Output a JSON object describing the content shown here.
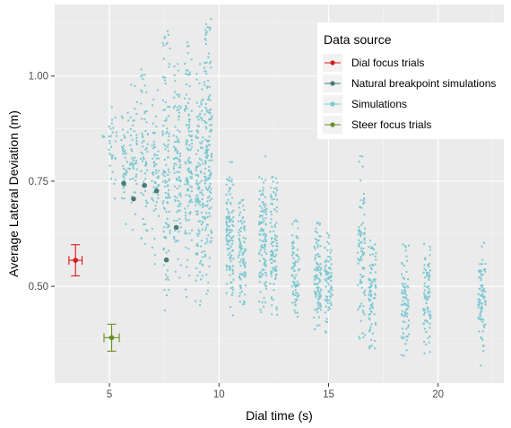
{
  "chart_data": {
    "type": "scatter",
    "title": "",
    "xlabel": "Dial time (s)",
    "ylabel": "Average Lateral Deviation (m)",
    "xlim": [
      2.5,
      23
    ],
    "ylim": [
      0.27,
      1.17
    ],
    "x_ticks": [
      5,
      10,
      15,
      20
    ],
    "x_tick_labels": [
      "5",
      "10",
      "15",
      "20"
    ],
    "y_ticks": [
      0.5,
      0.75,
      1.0
    ],
    "y_tick_labels": [
      "0.50",
      "0.75",
      "1.00"
    ],
    "grid": true,
    "legend": {
      "title": "Data source",
      "placement": "top-right",
      "entries": [
        {
          "label": "Dial focus trials",
          "color": "#d7191c"
        },
        {
          "label": "Natural breakpoint simulations",
          "color": "#4a7a7a"
        },
        {
          "label": "Simulations",
          "color": "#7ac8d0"
        },
        {
          "label": "Steer focus trials",
          "color": "#6b8e23"
        }
      ]
    },
    "series": [
      {
        "name": "Dial focus trials",
        "color": "#d7191c",
        "points": [
          {
            "x": 3.45,
            "y": 0.562,
            "xerr": 0.3,
            "yerr": 0.037
          }
        ]
      },
      {
        "name": "Steer focus trials",
        "color": "#6b8e23",
        "points": [
          {
            "x": 5.1,
            "y": 0.378,
            "xerr": 0.35,
            "yerr": 0.032
          }
        ]
      },
      {
        "name": "Natural breakpoint simulations",
        "color": "#4a7a7a",
        "points": [
          {
            "x": 5.65,
            "y": 0.745
          },
          {
            "x": 6.1,
            "y": 0.708
          },
          {
            "x": 6.6,
            "y": 0.74
          },
          {
            "x": 7.15,
            "y": 0.727
          },
          {
            "x": 7.6,
            "y": 0.563
          },
          {
            "x": 8.05,
            "y": 0.64
          }
        ]
      },
      {
        "name": "Simulations",
        "color": "#7ac8d0",
        "clusters": [
          {
            "x": 4.65,
            "y_min": 0.85,
            "y_max": 0.86,
            "n": 3
          },
          {
            "x": 5.15,
            "y_min": 0.68,
            "y_max": 0.98,
            "n": 30
          },
          {
            "x": 5.7,
            "y_min": 0.62,
            "y_max": 0.95,
            "n": 40
          },
          {
            "x": 6.1,
            "y_min": 0.62,
            "y_max": 0.98,
            "n": 50
          },
          {
            "x": 6.6,
            "y_min": 0.6,
            "y_max": 1.03,
            "n": 60
          },
          {
            "x": 7.1,
            "y_min": 0.55,
            "y_max": 0.98,
            "n": 60
          },
          {
            "x": 7.6,
            "y_min": 0.44,
            "y_max": 1.11,
            "n": 110
          },
          {
            "x": 8.1,
            "y_min": 0.5,
            "y_max": 1.05,
            "n": 100
          },
          {
            "x": 8.6,
            "y_min": 0.47,
            "y_max": 1.09,
            "n": 120
          },
          {
            "x": 9.1,
            "y_min": 0.43,
            "y_max": 1.03,
            "n": 130
          },
          {
            "x": 9.5,
            "y_min": 0.48,
            "y_max": 1.15,
            "n": 160
          },
          {
            "x": 10.5,
            "y_min": 0.43,
            "y_max": 0.8,
            "n": 120
          },
          {
            "x": 11.05,
            "y_min": 0.45,
            "y_max": 0.72,
            "n": 90
          },
          {
            "x": 12.0,
            "y_min": 0.42,
            "y_max": 0.81,
            "n": 120
          },
          {
            "x": 12.5,
            "y_min": 0.43,
            "y_max": 0.77,
            "n": 100
          },
          {
            "x": 13.5,
            "y_min": 0.42,
            "y_max": 0.66,
            "n": 80
          },
          {
            "x": 14.5,
            "y_min": 0.39,
            "y_max": 0.67,
            "n": 100
          },
          {
            "x": 15.0,
            "y_min": 0.38,
            "y_max": 0.63,
            "n": 80
          },
          {
            "x": 16.5,
            "y_min": 0.36,
            "y_max": 0.81,
            "n": 90
          },
          {
            "x": 17.0,
            "y_min": 0.35,
            "y_max": 0.62,
            "n": 80
          },
          {
            "x": 18.5,
            "y_min": 0.33,
            "y_max": 0.6,
            "n": 80
          },
          {
            "x": 19.5,
            "y_min": 0.34,
            "y_max": 0.61,
            "n": 80
          },
          {
            "x": 22.0,
            "y_min": 0.31,
            "y_max": 0.61,
            "n": 80
          }
        ]
      }
    ]
  }
}
